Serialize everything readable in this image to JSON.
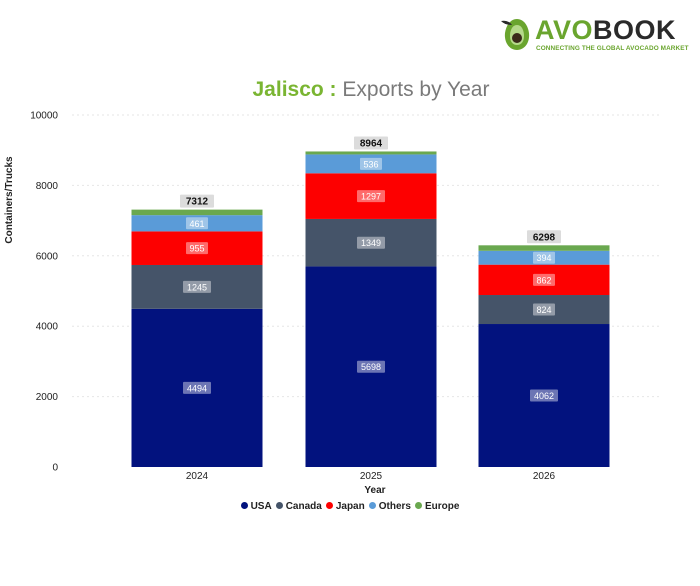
{
  "logo": {
    "brand_part1": "AVO",
    "brand_part2": "BOOK",
    "tagline": "CONNECTING THE GLOBAL AVOCADO MARKET",
    "icon": "avocado-icon"
  },
  "colors": {
    "USA": "#02127e",
    "Canada": "#455469",
    "Japan": "#fd0000",
    "Others": "#5a9bd8",
    "Europe": "#6aa84f",
    "title_accent": "#7ab532",
    "title_muted": "#7a7a7a"
  },
  "chart_data": {
    "type": "bar",
    "stacked": true,
    "title_part1": "Jalisco :",
    "title_part2": "Exports by Year",
    "xlabel": "Year",
    "ylabel": "Containers/Trucks",
    "ylim": [
      0,
      10000
    ],
    "yticks": [
      "0",
      "2000",
      "4000",
      "6000",
      "8000",
      "10000"
    ],
    "categories": [
      "2024",
      "2025",
      "2026"
    ],
    "series": [
      {
        "name": "USA",
        "values": [
          4494,
          5698,
          4062
        ]
      },
      {
        "name": "Canada",
        "values": [
          1245,
          1349,
          824
        ]
      },
      {
        "name": "Japan",
        "values": [
          955,
          1297,
          862
        ]
      },
      {
        "name": "Others",
        "values": [
          461,
          536,
          394
        ]
      },
      {
        "name": "Europe",
        "values": [
          157,
          84,
          156
        ]
      }
    ],
    "totals": [
      7312,
      8964,
      6298
    ],
    "legend_position": "bottom",
    "grid": true
  }
}
